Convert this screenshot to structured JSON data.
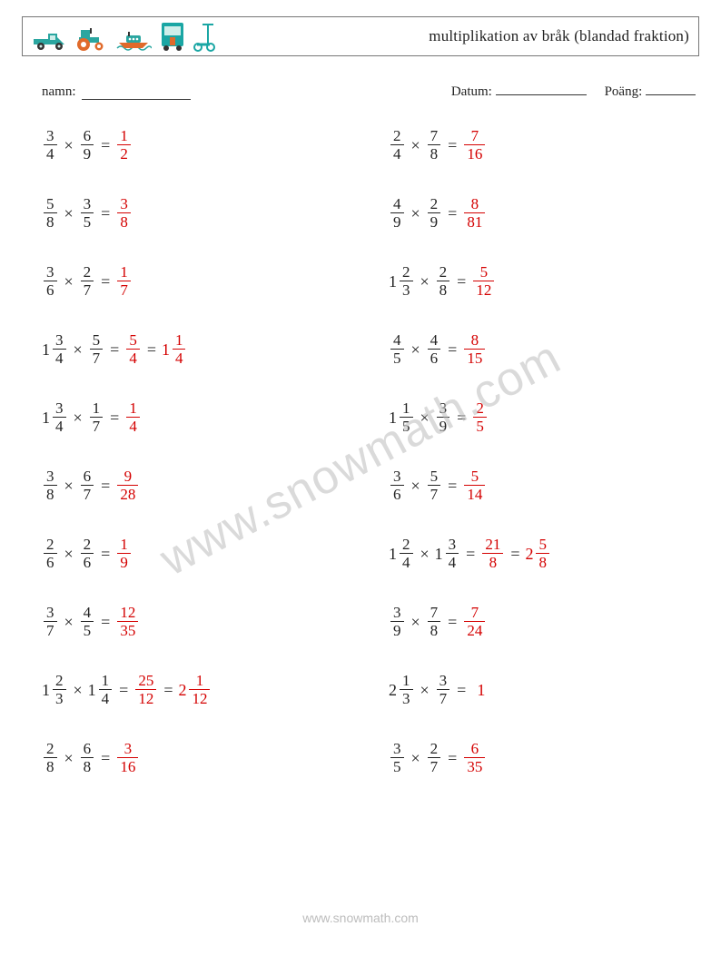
{
  "title": "multiplikation av bråk (blandad fraktion)",
  "labels": {
    "name": "namn:",
    "date": "Datum:",
    "score": "Poäng:"
  },
  "answer_color": "#d40000",
  "text_color": "#222222",
  "operator": "×",
  "equals": "=",
  "watermark": "www.snowmath.com",
  "footer_url": "www.snowmath.com",
  "icon_colors": {
    "truck": "#2aa6a0",
    "bus": "#1aa6a4",
    "scooter": "#1aa6a4",
    "tractor_body": "#2aa6a0",
    "tractor_wheel": "#e06a2b",
    "boat_hull": "#e06a2b",
    "boat_top": "#2aa6a0"
  },
  "problems": [
    [
      {
        "a": {
          "n": "3",
          "d": "4"
        },
        "b": {
          "n": "6",
          "d": "9"
        },
        "ans": [
          {
            "n": "1",
            "d": "2"
          }
        ]
      },
      {
        "a": {
          "n": "2",
          "d": "4"
        },
        "b": {
          "n": "7",
          "d": "8"
        },
        "ans": [
          {
            "n": "7",
            "d": "16"
          }
        ]
      }
    ],
    [
      {
        "a": {
          "n": "5",
          "d": "8"
        },
        "b": {
          "n": "3",
          "d": "5"
        },
        "ans": [
          {
            "n": "3",
            "d": "8"
          }
        ]
      },
      {
        "a": {
          "n": "4",
          "d": "9"
        },
        "b": {
          "n": "2",
          "d": "9"
        },
        "ans": [
          {
            "n": "8",
            "d": "81"
          }
        ]
      }
    ],
    [
      {
        "a": {
          "n": "3",
          "d": "6"
        },
        "b": {
          "n": "2",
          "d": "7"
        },
        "ans": [
          {
            "n": "1",
            "d": "7"
          }
        ]
      },
      {
        "a": {
          "w": "1",
          "n": "2",
          "d": "3"
        },
        "b": {
          "n": "2",
          "d": "8"
        },
        "ans": [
          {
            "n": "5",
            "d": "12"
          }
        ]
      }
    ],
    [
      {
        "a": {
          "w": "1",
          "n": "3",
          "d": "4"
        },
        "b": {
          "n": "5",
          "d": "7"
        },
        "ans": [
          {
            "n": "5",
            "d": "4"
          },
          {
            "w": "1",
            "n": "1",
            "d": "4"
          }
        ]
      },
      {
        "a": {
          "n": "4",
          "d": "5"
        },
        "b": {
          "n": "4",
          "d": "6"
        },
        "ans": [
          {
            "n": "8",
            "d": "15"
          }
        ]
      }
    ],
    [
      {
        "a": {
          "w": "1",
          "n": "3",
          "d": "4"
        },
        "b": {
          "n": "1",
          "d": "7"
        },
        "ans": [
          {
            "n": "1",
            "d": "4"
          }
        ]
      },
      {
        "a": {
          "w": "1",
          "n": "1",
          "d": "5"
        },
        "b": {
          "n": "3",
          "d": "9"
        },
        "ans": [
          {
            "n": "2",
            "d": "5"
          }
        ]
      }
    ],
    [
      {
        "a": {
          "n": "3",
          "d": "8"
        },
        "b": {
          "n": "6",
          "d": "7"
        },
        "ans": [
          {
            "n": "9",
            "d": "28"
          }
        ]
      },
      {
        "a": {
          "n": "3",
          "d": "6"
        },
        "b": {
          "n": "5",
          "d": "7"
        },
        "ans": [
          {
            "n": "5",
            "d": "14"
          }
        ]
      }
    ],
    [
      {
        "a": {
          "n": "2",
          "d": "6"
        },
        "b": {
          "n": "2",
          "d": "6"
        },
        "ans": [
          {
            "n": "1",
            "d": "9"
          }
        ]
      },
      {
        "a": {
          "w": "1",
          "n": "2",
          "d": "4"
        },
        "b": {
          "w": "1",
          "n": "3",
          "d": "4"
        },
        "ans": [
          {
            "n": "21",
            "d": "8"
          },
          {
            "w": "2",
            "n": "5",
            "d": "8"
          }
        ]
      }
    ],
    [
      {
        "a": {
          "n": "3",
          "d": "7"
        },
        "b": {
          "n": "4",
          "d": "5"
        },
        "ans": [
          {
            "n": "12",
            "d": "35"
          }
        ]
      },
      {
        "a": {
          "n": "3",
          "d": "9"
        },
        "b": {
          "n": "7",
          "d": "8"
        },
        "ans": [
          {
            "n": "7",
            "d": "24"
          }
        ]
      }
    ],
    [
      {
        "a": {
          "w": "1",
          "n": "2",
          "d": "3"
        },
        "b": {
          "w": "1",
          "n": "1",
          "d": "4"
        },
        "ans": [
          {
            "n": "25",
            "d": "12"
          },
          {
            "w": "2",
            "n": "1",
            "d": "12"
          }
        ]
      },
      {
        "a": {
          "w": "2",
          "n": "1",
          "d": "3"
        },
        "b": {
          "n": "3",
          "d": "7"
        },
        "ans": [
          {
            "int": "1"
          }
        ]
      }
    ],
    [
      {
        "a": {
          "n": "2",
          "d": "8"
        },
        "b": {
          "n": "6",
          "d": "8"
        },
        "ans": [
          {
            "n": "3",
            "d": "16"
          }
        ]
      },
      {
        "a": {
          "n": "3",
          "d": "5"
        },
        "b": {
          "n": "2",
          "d": "7"
        },
        "ans": [
          {
            "n": "6",
            "d": "35"
          }
        ]
      }
    ]
  ]
}
